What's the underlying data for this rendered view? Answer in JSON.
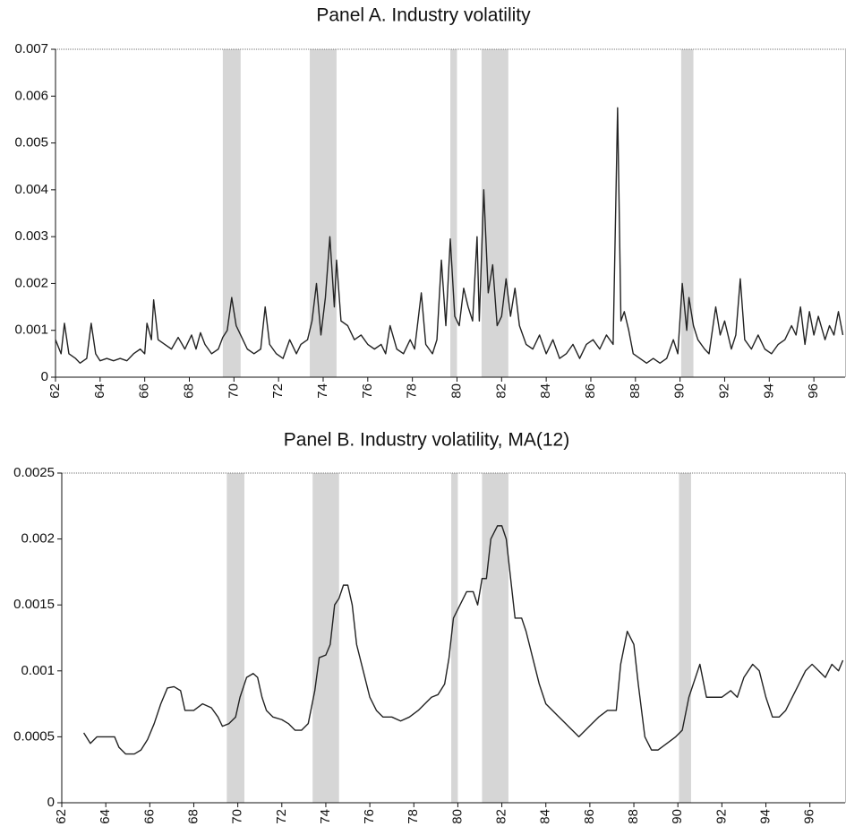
{
  "chart_data": [
    {
      "type": "line",
      "title": "Panel A. Industry volatility",
      "color": "#222222",
      "shade_color": "#d6d6d6",
      "xlim": [
        62,
        97.4
      ],
      "ylim": [
        0,
        0.007
      ],
      "xticks": [
        62,
        64,
        66,
        68,
        70,
        72,
        74,
        76,
        78,
        80,
        82,
        84,
        86,
        88,
        90,
        92,
        94,
        96
      ],
      "yticks": [
        0,
        0.001,
        0.002,
        0.003,
        0.004,
        0.005,
        0.006,
        0.007
      ],
      "recessions": [
        [
          69.5,
          70.3
        ],
        [
          73.4,
          74.6
        ],
        [
          79.7,
          80.0
        ],
        [
          81.1,
          82.3
        ],
        [
          90.05,
          90.6
        ]
      ],
      "x": [
        62.0,
        62.25,
        62.4,
        62.6,
        62.9,
        63.1,
        63.4,
        63.6,
        63.8,
        64.0,
        64.3,
        64.6,
        64.9,
        65.2,
        65.5,
        65.8,
        66.0,
        66.1,
        66.3,
        66.4,
        66.6,
        66.9,
        67.2,
        67.5,
        67.8,
        68.1,
        68.3,
        68.5,
        68.7,
        69.0,
        69.3,
        69.5,
        69.7,
        69.9,
        70.1,
        70.3,
        70.6,
        70.9,
        71.2,
        71.4,
        71.6,
        71.9,
        72.2,
        72.5,
        72.8,
        73.0,
        73.3,
        73.5,
        73.7,
        73.9,
        74.1,
        74.3,
        74.5,
        74.6,
        74.8,
        75.1,
        75.4,
        75.7,
        76.0,
        76.3,
        76.6,
        76.8,
        77.0,
        77.3,
        77.6,
        77.9,
        78.1,
        78.4,
        78.6,
        78.9,
        79.1,
        79.3,
        79.5,
        79.7,
        79.9,
        80.1,
        80.3,
        80.5,
        80.7,
        80.9,
        81.0,
        81.2,
        81.4,
        81.6,
        81.8,
        82.0,
        82.2,
        82.4,
        82.6,
        82.8,
        83.1,
        83.4,
        83.7,
        84.0,
        84.3,
        84.6,
        84.9,
        85.2,
        85.5,
        85.8,
        86.1,
        86.4,
        86.7,
        87.0,
        87.2,
        87.35,
        87.5,
        87.7,
        87.9,
        88.2,
        88.5,
        88.8,
        89.1,
        89.4,
        89.7,
        89.9,
        90.1,
        90.3,
        90.4,
        90.6,
        90.8,
        91.1,
        91.3,
        91.6,
        91.8,
        92.0,
        92.3,
        92.5,
        92.7,
        92.9,
        93.2,
        93.5,
        93.8,
        94.1,
        94.4,
        94.7,
        95.0,
        95.2,
        95.4,
        95.6,
        95.8,
        96.0,
        96.2,
        96.5,
        96.7,
        96.9,
        97.1,
        97.3
      ],
      "values": [
        0.0008,
        0.0005,
        0.00115,
        0.0005,
        0.0004,
        0.0003,
        0.0004,
        0.00115,
        0.0005,
        0.00035,
        0.0004,
        0.00035,
        0.0004,
        0.00035,
        0.0005,
        0.0006,
        0.0005,
        0.00115,
        0.0008,
        0.00165,
        0.0008,
        0.0007,
        0.0006,
        0.00085,
        0.0006,
        0.0009,
        0.0006,
        0.00095,
        0.0007,
        0.0005,
        0.0006,
        0.00085,
        0.001,
        0.0017,
        0.0011,
        0.0009,
        0.0006,
        0.0005,
        0.0006,
        0.0015,
        0.0007,
        0.0005,
        0.0004,
        0.0008,
        0.0005,
        0.0007,
        0.0008,
        0.0012,
        0.002,
        0.0009,
        0.0017,
        0.003,
        0.0015,
        0.0025,
        0.0012,
        0.0011,
        0.0008,
        0.0009,
        0.0007,
        0.0006,
        0.0007,
        0.0005,
        0.0011,
        0.0006,
        0.0005,
        0.0008,
        0.0006,
        0.0018,
        0.0007,
        0.0005,
        0.0008,
        0.0025,
        0.0011,
        0.00295,
        0.0013,
        0.0011,
        0.0019,
        0.0015,
        0.0012,
        0.003,
        0.0012,
        0.004,
        0.0018,
        0.0024,
        0.0011,
        0.0013,
        0.0021,
        0.0013,
        0.0019,
        0.0011,
        0.0007,
        0.0006,
        0.0009,
        0.0005,
        0.0008,
        0.0004,
        0.0005,
        0.0007,
        0.0004,
        0.0007,
        0.0008,
        0.0006,
        0.0009,
        0.0007,
        0.00575,
        0.0012,
        0.0014,
        0.001,
        0.0005,
        0.0004,
        0.0003,
        0.0004,
        0.0003,
        0.0004,
        0.0008,
        0.0005,
        0.002,
        0.001,
        0.0017,
        0.0011,
        0.0008,
        0.0006,
        0.0005,
        0.0015,
        0.0009,
        0.0012,
        0.0006,
        0.0009,
        0.0021,
        0.0008,
        0.0006,
        0.0009,
        0.0006,
        0.0005,
        0.0007,
        0.0008,
        0.0011,
        0.0009,
        0.0015,
        0.0007,
        0.0014,
        0.0009,
        0.0013,
        0.0008,
        0.0011,
        0.0009,
        0.0014,
        0.0009
      ]
    },
    {
      "type": "line",
      "title": "Panel B. Industry volatility, MA(12)",
      "color": "#222222",
      "shade_color": "#d6d6d6",
      "xlim": [
        62,
        97.6
      ],
      "ylim": [
        0,
        0.0025
      ],
      "xticks": [
        62,
        64,
        66,
        68,
        70,
        72,
        74,
        76,
        78,
        80,
        82,
        84,
        86,
        88,
        90,
        92,
        94,
        96
      ],
      "yticks": [
        0,
        0.0005,
        0.001,
        0.0015,
        0.002,
        0.0025
      ],
      "recessions": [
        [
          69.5,
          70.3
        ],
        [
          73.4,
          74.6
        ],
        [
          79.7,
          80.0
        ],
        [
          81.1,
          82.3
        ],
        [
          90.05,
          90.6
        ]
      ],
      "x": [
        63.0,
        63.3,
        63.6,
        64.0,
        64.4,
        64.6,
        64.9,
        65.3,
        65.6,
        65.9,
        66.2,
        66.5,
        66.8,
        67.1,
        67.4,
        67.6,
        68.0,
        68.4,
        68.8,
        69.1,
        69.3,
        69.6,
        69.9,
        70.1,
        70.4,
        70.7,
        70.9,
        71.1,
        71.3,
        71.6,
        72.0,
        72.3,
        72.6,
        72.9,
        73.2,
        73.5,
        73.7,
        74.0,
        74.2,
        74.4,
        74.6,
        74.8,
        75.0,
        75.2,
        75.4,
        75.7,
        76.0,
        76.3,
        76.6,
        77.0,
        77.4,
        77.8,
        78.2,
        78.5,
        78.8,
        79.1,
        79.4,
        79.6,
        79.8,
        80.1,
        80.4,
        80.7,
        80.9,
        81.1,
        81.3,
        81.5,
        81.8,
        82.0,
        82.2,
        82.4,
        82.6,
        82.9,
        83.1,
        83.4,
        83.7,
        84.0,
        84.3,
        84.6,
        84.9,
        85.2,
        85.5,
        85.8,
        86.1,
        86.4,
        86.8,
        87.2,
        87.4,
        87.7,
        88.0,
        88.2,
        88.5,
        88.8,
        89.1,
        89.5,
        89.9,
        90.2,
        90.5,
        90.7,
        91.0,
        91.3,
        91.6,
        92.0,
        92.4,
        92.7,
        93.0,
        93.4,
        93.7,
        94.0,
        94.3,
        94.6,
        94.9,
        95.2,
        95.5,
        95.8,
        96.1,
        96.4,
        96.7,
        97.0,
        97.3,
        97.5
      ],
      "values": [
        0.00053,
        0.00045,
        0.0005,
        0.0005,
        0.0005,
        0.00042,
        0.00037,
        0.00037,
        0.0004,
        0.00048,
        0.0006,
        0.00075,
        0.00087,
        0.00088,
        0.00085,
        0.0007,
        0.0007,
        0.00075,
        0.00072,
        0.00065,
        0.00058,
        0.0006,
        0.00065,
        0.0008,
        0.00095,
        0.00098,
        0.00095,
        0.0008,
        0.0007,
        0.00065,
        0.00063,
        0.0006,
        0.00055,
        0.00055,
        0.0006,
        0.00085,
        0.0011,
        0.00112,
        0.0012,
        0.0015,
        0.00155,
        0.00165,
        0.00165,
        0.0015,
        0.0012,
        0.001,
        0.0008,
        0.0007,
        0.00065,
        0.00065,
        0.00062,
        0.00065,
        0.0007,
        0.00075,
        0.0008,
        0.00082,
        0.0009,
        0.0011,
        0.0014,
        0.0015,
        0.0016,
        0.0016,
        0.0015,
        0.0017,
        0.0017,
        0.002,
        0.0021,
        0.0021,
        0.002,
        0.0017,
        0.0014,
        0.0014,
        0.0013,
        0.0011,
        0.0009,
        0.00075,
        0.0007,
        0.00065,
        0.0006,
        0.00055,
        0.0005,
        0.00055,
        0.0006,
        0.00065,
        0.0007,
        0.0007,
        0.00105,
        0.0013,
        0.0012,
        0.0009,
        0.0005,
        0.0004,
        0.0004,
        0.00045,
        0.0005,
        0.00055,
        0.0008,
        0.0009,
        0.00105,
        0.0008,
        0.0008,
        0.0008,
        0.00085,
        0.0008,
        0.00095,
        0.00105,
        0.001,
        0.0008,
        0.00065,
        0.00065,
        0.0007,
        0.0008,
        0.0009,
        0.001,
        0.00105,
        0.001,
        0.00095,
        0.00105,
        0.001,
        0.00108
      ]
    }
  ]
}
